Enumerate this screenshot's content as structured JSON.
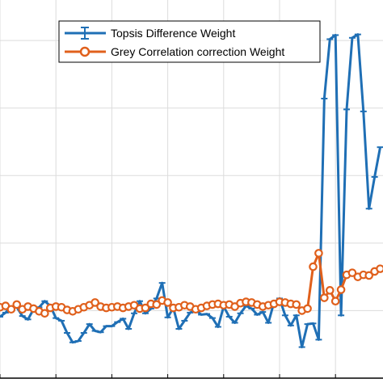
{
  "chart_data": {
    "type": "line",
    "title": "",
    "xlabel": "",
    "ylabel": "",
    "grid": true,
    "legend_position": "top",
    "xlim": [
      0,
      68.5
    ],
    "ylim": [
      0,
      56
    ],
    "x_ticks": [
      0,
      10,
      20,
      30,
      40,
      50,
      60
    ],
    "y_ticks": [
      0,
      10,
      20,
      30,
      40,
      50
    ],
    "colors": {
      "topsis": "#1f6fb5",
      "grey": "#e0601c",
      "grid": "#dcdcdc",
      "axis": "#000000"
    },
    "series": [
      {
        "name": "Topsis Difference Weight",
        "marker": "errorbar",
        "x": [
          0,
          1,
          2,
          3,
          4,
          5,
          6,
          7,
          8,
          9,
          10,
          11,
          12,
          13,
          14,
          15,
          16,
          17,
          18,
          19,
          20,
          21,
          22,
          23,
          24,
          25,
          26,
          27,
          28,
          29,
          30,
          31,
          32,
          33,
          34,
          35,
          36,
          37,
          38,
          39,
          40,
          41,
          42,
          43,
          44,
          45,
          46,
          47,
          48,
          49,
          50,
          51,
          52,
          53,
          54,
          55,
          56,
          57,
          58,
          59,
          60,
          61,
          62,
          63,
          64,
          65,
          66,
          67,
          68
        ],
        "y": [
          9.1,
          9.7,
          10.6,
          10.5,
          9.2,
          8.7,
          10.2,
          10.5,
          11.4,
          10.7,
          8.9,
          8.5,
          6.7,
          5.3,
          5.5,
          6.7,
          8.0,
          7.0,
          6.8,
          7.7,
          7.7,
          8.3,
          8.8,
          7.3,
          9.6,
          11.4,
          9.6,
          10.3,
          11.8,
          14.1,
          9.0,
          10.4,
          7.3,
          8.5,
          9.7,
          10.1,
          9.4,
          9.5,
          8.9,
          7.6,
          10.6,
          9.1,
          8.2,
          9.6,
          10.7,
          10.3,
          9.4,
          9.8,
          8.2,
          11.2,
          11.8,
          9.3,
          7.8,
          9.3,
          4.6,
          8.0,
          8.1,
          5.7,
          41.4,
          50.2,
          50.8,
          9.3,
          39.8,
          50.4,
          50.9,
          39.5,
          25.1,
          29.8,
          34.2
        ]
      },
      {
        "name": "Grey Correlation correction Weight",
        "marker": "circle",
        "x": [
          0,
          1,
          2,
          3,
          4,
          5,
          6,
          7,
          8,
          9,
          10,
          11,
          12,
          13,
          14,
          15,
          16,
          17,
          18,
          19,
          20,
          21,
          22,
          23,
          24,
          25,
          26,
          27,
          28,
          29,
          30,
          31,
          32,
          33,
          34,
          35,
          36,
          37,
          38,
          39,
          40,
          41,
          42,
          43,
          44,
          45,
          46,
          47,
          48,
          49,
          50,
          51,
          52,
          53,
          54,
          55,
          56,
          57,
          58,
          59,
          60,
          61,
          62,
          63,
          64,
          65,
          66,
          67,
          68
        ],
        "y": [
          10.5,
          10.7,
          10.2,
          10.9,
          10.2,
          10.6,
          10.3,
          9.9,
          9.6,
          10.4,
          10.6,
          10.5,
          10.1,
          9.9,
          10.2,
          10.5,
          10.8,
          11.2,
          10.6,
          10.4,
          10.5,
          10.6,
          10.4,
          10.6,
          10.8,
          10.3,
          10.4,
          11.0,
          10.9,
          11.5,
          11.2,
          10.4,
          10.5,
          10.8,
          10.6,
          10.2,
          10.4,
          10.7,
          10.9,
          11.0,
          10.8,
          10.9,
          10.6,
          11.1,
          11.3,
          11.2,
          10.9,
          10.6,
          10.8,
          11.0,
          11.3,
          11.2,
          11.0,
          10.9,
          10.0,
          10.3,
          16.5,
          18.5,
          11.9,
          13.0,
          11.4,
          13.1,
          15.3,
          15.6,
          15.0,
          15.3,
          15.2,
          15.8,
          16.2
        ]
      }
    ]
  }
}
